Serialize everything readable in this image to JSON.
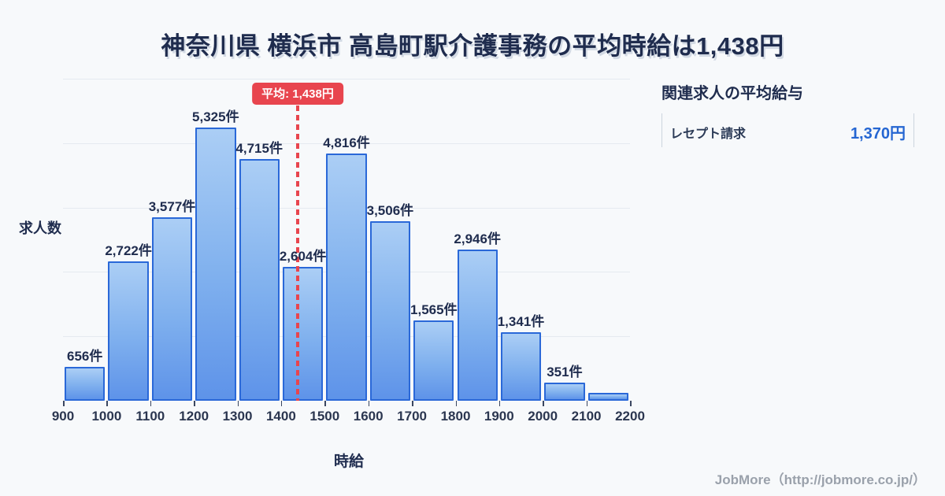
{
  "title": "神奈川県 横浜市 高島町駅介護事務の平均時給は1,438円",
  "chart_data": {
    "type": "bar",
    "title": "神奈川県 横浜市 高島町駅介護事務の平均時給は1,438円",
    "xlabel": "時給",
    "ylabel": "求人数",
    "x_ticks": [
      900,
      1000,
      1100,
      1200,
      1300,
      1400,
      1500,
      1600,
      1700,
      1800,
      1900,
      2000,
      2100,
      2200
    ],
    "xlim": [
      900,
      2200
    ],
    "ylim": [
      0,
      6275
    ],
    "grid": "horizontal",
    "bins": [
      {
        "range": [
          900,
          1000
        ],
        "value": 656,
        "label": "656件"
      },
      {
        "range": [
          1000,
          1100
        ],
        "value": 2722,
        "label": "2,722件"
      },
      {
        "range": [
          1100,
          1200
        ],
        "value": 3577,
        "label": "3,577件"
      },
      {
        "range": [
          1200,
          1300
        ],
        "value": 5325,
        "label": "5,325件"
      },
      {
        "range": [
          1300,
          1400
        ],
        "value": 4715,
        "label": "4,715件"
      },
      {
        "range": [
          1400,
          1500
        ],
        "value": 2604,
        "label": "2,604件"
      },
      {
        "range": [
          1500,
          1600
        ],
        "value": 4816,
        "label": "4,816件"
      },
      {
        "range": [
          1600,
          1700
        ],
        "value": 3506,
        "label": "3,506件"
      },
      {
        "range": [
          1700,
          1800
        ],
        "value": 1565,
        "label": "1,565件"
      },
      {
        "range": [
          1800,
          1900
        ],
        "value": 2946,
        "label": "2,946件"
      },
      {
        "range": [
          1900,
          2000
        ],
        "value": 1341,
        "label": "1,341件"
      },
      {
        "range": [
          2000,
          2100
        ],
        "value": 351,
        "label": "351件"
      },
      {
        "range": [
          2100,
          2200
        ],
        "value": 150,
        "label": ""
      }
    ],
    "average_line": {
      "value": 1438,
      "label": "平均: 1,438円"
    }
  },
  "side_panel": {
    "heading": "関連求人の平均給与",
    "rows": [
      {
        "label": "レセプト請求",
        "value": "1,370円"
      }
    ]
  },
  "footer": {
    "credit": "JobMore（http://jobmore.co.jp/）"
  },
  "colors": {
    "background": "#f7f9fb",
    "bar_fill_top": "#abcef5",
    "bar_fill_bottom": "#5e93e9",
    "bar_border": "#2a68d8",
    "average_red": "#e8454e",
    "value_blue": "#2566d2",
    "text_dark": "#1f2c4e",
    "grid": "#e5eaf0",
    "footer_gray": "#9aa1ab"
  }
}
